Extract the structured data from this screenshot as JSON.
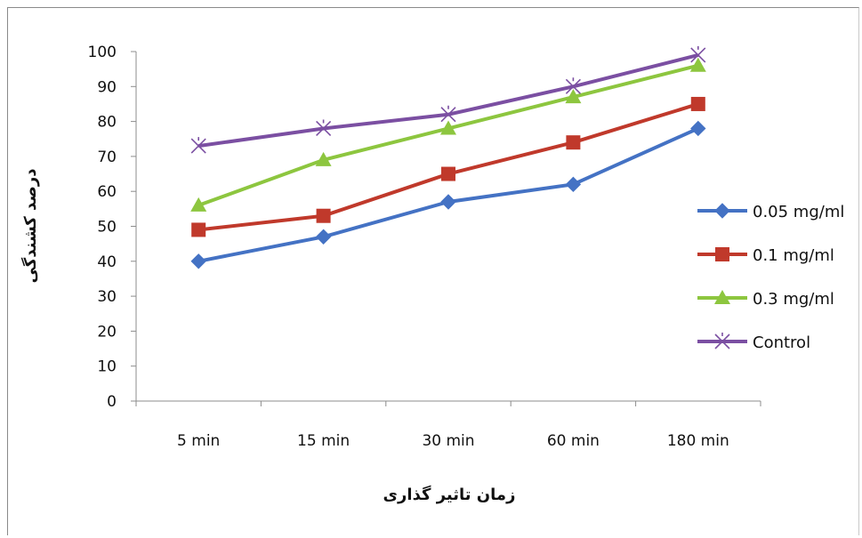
{
  "chart_data": {
    "type": "line",
    "categories": [
      "5 min",
      "15 min",
      "30 min",
      "60 min",
      "180 min"
    ],
    "series": [
      {
        "name": "0.05 mg/ml",
        "values": [
          40,
          47,
          57,
          62,
          78
        ],
        "color": "#4472c4",
        "marker": "diamond"
      },
      {
        "name": "0.1 mg/ml",
        "values": [
          49,
          53,
          65,
          74,
          85
        ],
        "color": "#c0392b",
        "marker": "square"
      },
      {
        "name": "0.3 mg/ml",
        "values": [
          56,
          69,
          78,
          87,
          96
        ],
        "color": "#8dc63f",
        "marker": "triangle"
      },
      {
        "name": "Control",
        "values": [
          73,
          78,
          82,
          90,
          99
        ],
        "color": "#7b4fa2",
        "marker": "x"
      }
    ],
    "ylim": [
      0,
      100
    ],
    "yticks": [
      0,
      10,
      20,
      30,
      40,
      50,
      60,
      70,
      80,
      90,
      100
    ],
    "xlabel": "زمان تاثیر گذاری",
    "ylabel": "درصد کشندگی",
    "grid": false,
    "legend_position": "right"
  }
}
